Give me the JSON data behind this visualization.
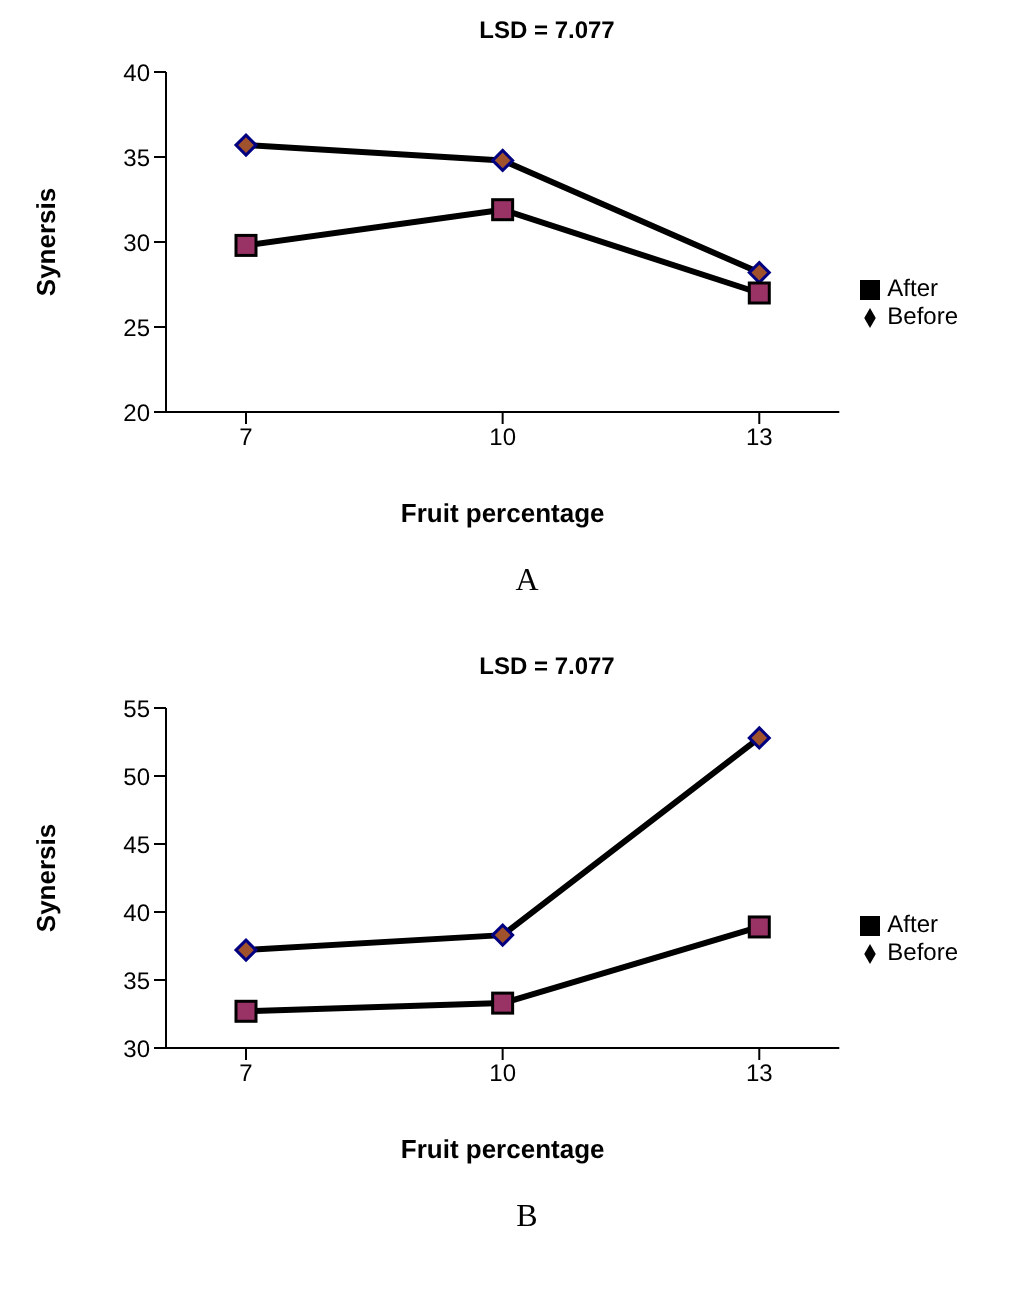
{
  "chart_data": [
    {
      "type": "line",
      "title": "LSD = 7.077",
      "xlabel": "Fruit percentage",
      "ylabel": "Synersis",
      "categories": [
        "7",
        "10",
        "13"
      ],
      "ylim": [
        20,
        40
      ],
      "yticks": [
        20,
        25,
        30,
        35,
        40
      ],
      "legend": "right",
      "grid": false,
      "annotations": [
        "A"
      ],
      "series": [
        {
          "name": "Before",
          "color": "#a0522d",
          "marker": "diamond",
          "values": [
            35.7,
            34.8,
            28.2
          ]
        },
        {
          "name": "After",
          "color": "#993366",
          "marker": "square",
          "values": [
            29.8,
            31.9,
            27.0
          ]
        }
      ]
    },
    {
      "type": "line",
      "title": "LSD = 7.077",
      "xlabel": "Fruit percentage",
      "ylabel": "Synersis",
      "categories": [
        "7",
        "10",
        "13"
      ],
      "ylim": [
        30,
        55
      ],
      "yticks": [
        30,
        35,
        40,
        45,
        50,
        55
      ],
      "legend": "right",
      "grid": false,
      "annotations": [
        "B"
      ],
      "series": [
        {
          "name": "Before",
          "color": "#a0522d",
          "marker": "diamond",
          "values": [
            37.2,
            38.3,
            52.8
          ]
        },
        {
          "name": "After",
          "color": "#993366",
          "marker": "square",
          "values": [
            32.7,
            33.3,
            38.9
          ]
        }
      ]
    }
  ]
}
